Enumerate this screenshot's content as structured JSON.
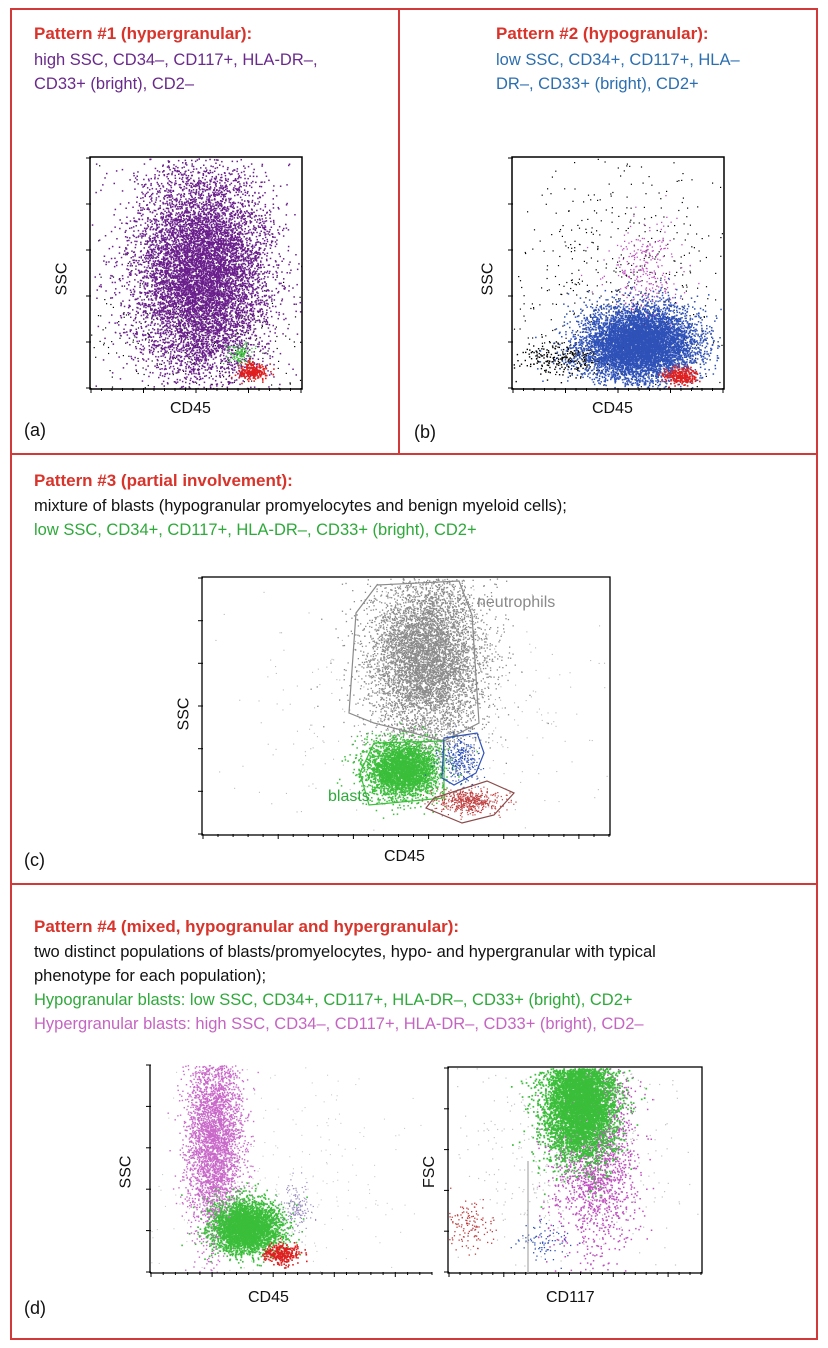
{
  "panels": {
    "a": {
      "label": "(a)",
      "title": "Pattern #1 (hypergranular):",
      "line1": "high SSC, CD34–, CD117+, HLA-DR–,",
      "line2": "CD33+ (bright), CD2–",
      "xlabel": "CD45",
      "ylabel": "SSC"
    },
    "b": {
      "label": "(b)",
      "title": "Pattern #2 (hypogranular):",
      "line1": "low SSC, CD34+, CD117+, HLA–",
      "line2": "DR–, CD33+ (bright), CD2+",
      "xlabel": "CD45",
      "ylabel": "SSC"
    },
    "c": {
      "label": "(c)",
      "title": "Pattern #3 (partial involvement):",
      "line1": "mixture of blasts (hypogranular promyelocytes and benign myeloid cells);",
      "line2": "low SSC, CD34+, CD117+, HLA-DR–, CD33+ (bright), CD2+",
      "xlabel": "CD45",
      "ylabel": "SSC",
      "gate_neutrophils": "neutrophils",
      "gate_blasts": "blasts"
    },
    "d": {
      "label": "(d)",
      "title": "Pattern #4 (mixed, hypogranular and hypergranular):",
      "line1": "two distinct populations of blasts/promyelocytes, hypo- and hypergranular with typical",
      "line2": "phenotype for each population);",
      "line3": "Hypogranular blasts: low SSC, CD34+, CD117+, HLA-DR–, CD33+ (bright), CD2+",
      "line4": "Hypergranular blasts: high SSC, CD34–, CD117+, HLA-DR–, CD33+ (bright), CD2–",
      "left_xlabel": "CD45",
      "left_ylabel": "SSC",
      "right_xlabel": "CD117",
      "right_ylabel": "FSC"
    }
  },
  "colors": {
    "border": "#d23a3a",
    "title": "#d8342b",
    "purple": "#6a1f8c",
    "blue": "#2f52b8",
    "red": "#e02020",
    "green": "#3bbf3b",
    "pink": "#c04fc0",
    "grey": "#8a8a8a"
  }
}
